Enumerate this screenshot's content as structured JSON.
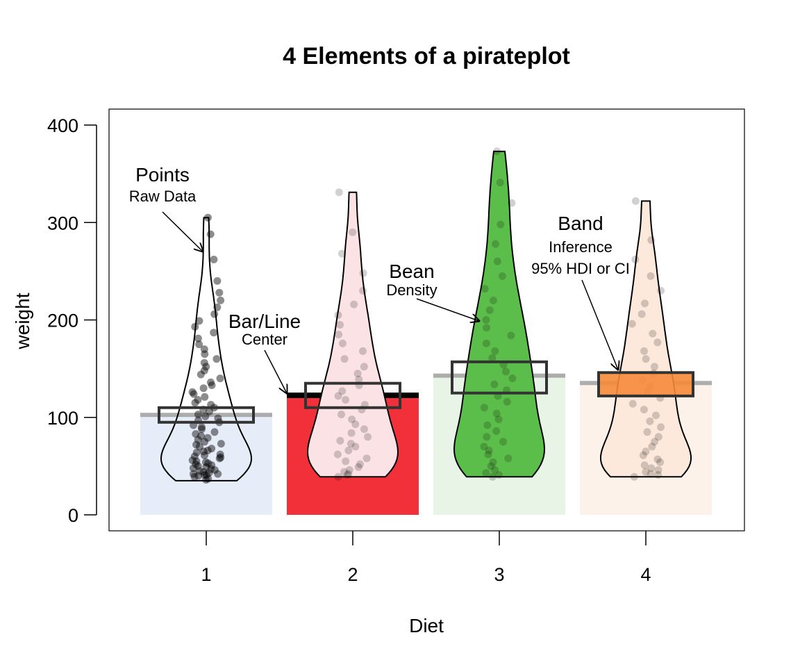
{
  "chart_data": {
    "type": "pirateplot",
    "title": "4 Elements of a pirateplot",
    "xlabel": "Diet",
    "ylabel": "weight",
    "ylim": [
      0,
      400
    ],
    "yticks": [
      0,
      100,
      200,
      300,
      400
    ],
    "categories": [
      "1",
      "2",
      "3",
      "4"
    ],
    "grid": false,
    "legend": "none",
    "groups": [
      {
        "category": "1",
        "mean": 102.6,
        "inference": [
          95,
          110
        ],
        "min": 35,
        "max": 305,
        "bar_color": "#e6ecf8",
        "bean_fill": "none",
        "line_color": "#a0a0a0",
        "band_fill": "none",
        "points": [
          36,
          37,
          39,
          40,
          41,
          41,
          42,
          42,
          43,
          44,
          45,
          46,
          47,
          48,
          49,
          50,
          51,
          52,
          53,
          54,
          55,
          56,
          58,
          59,
          60,
          61,
          62,
          64,
          65,
          66,
          68,
          70,
          72,
          73,
          75,
          77,
          79,
          81,
          83,
          85,
          88,
          90,
          92,
          95,
          97,
          99,
          101,
          103,
          106,
          108,
          110,
          113,
          115,
          118,
          121,
          124,
          126,
          130,
          133,
          136,
          140,
          144,
          148,
          152,
          156,
          160,
          165,
          170,
          175,
          181,
          187,
          193,
          199,
          206,
          213,
          220,
          228,
          240,
          262,
          288,
          305
        ]
      },
      {
        "category": "2",
        "mean": 122.6,
        "inference": [
          110,
          135
        ],
        "min": 39,
        "max": 331,
        "bar_color": "#f2303a",
        "bean_fill": "#fbe2e4",
        "line_color": "#000000",
        "band_fill": "none",
        "points": [
          39,
          41,
          42,
          44,
          46,
          49,
          52,
          55,
          58,
          62,
          66,
          70,
          73,
          76,
          80,
          84,
          88,
          93,
          98,
          103,
          108,
          113,
          118,
          122,
          127,
          133,
          139,
          145,
          152,
          160,
          168,
          176,
          185,
          195,
          205,
          216,
          230,
          248,
          268,
          290,
          331
        ]
      },
      {
        "category": "3",
        "mean": 142.9,
        "inference": [
          125,
          157
        ],
        "min": 39,
        "max": 373,
        "bar_color": "#e8f5e6",
        "bean_fill": "#5cbe4a",
        "line_color": "#a0a0a0",
        "band_fill": "none",
        "points": [
          39,
          41,
          43,
          46,
          50,
          54,
          58,
          62,
          66,
          70,
          75,
          80,
          86,
          92,
          98,
          104,
          110,
          116,
          122,
          128,
          134,
          140,
          147,
          154,
          161,
          168,
          176,
          184,
          192,
          200,
          210,
          220,
          232,
          245,
          260,
          278,
          298,
          320,
          341,
          373
        ]
      },
      {
        "category": "4",
        "mean": 135.3,
        "inference": [
          122,
          146
        ],
        "min": 39,
        "max": 322,
        "bar_color": "#fdf2e9",
        "bean_fill": "#fde9dc",
        "line_color": "#a0a0a0",
        "band_fill": "#f6893a",
        "points": [
          39,
          41,
          42,
          44,
          46,
          48,
          51,
          54,
          57,
          61,
          65,
          70,
          75,
          80,
          85,
          90,
          96,
          102,
          108,
          114,
          120,
          126,
          132,
          138,
          145,
          152,
          160,
          168,
          177,
          186,
          196,
          206,
          217,
          230,
          245,
          262,
          282,
          322
        ]
      }
    ],
    "annotations": [
      {
        "label": "Points",
        "sub": "Raw Data"
      },
      {
        "label": "Bar/Line",
        "sub": "Center"
      },
      {
        "label": "Bean",
        "sub": "Density"
      },
      {
        "label": "Band",
        "sub": "Inference",
        "sub2": "95% HDI or CI"
      }
    ]
  }
}
